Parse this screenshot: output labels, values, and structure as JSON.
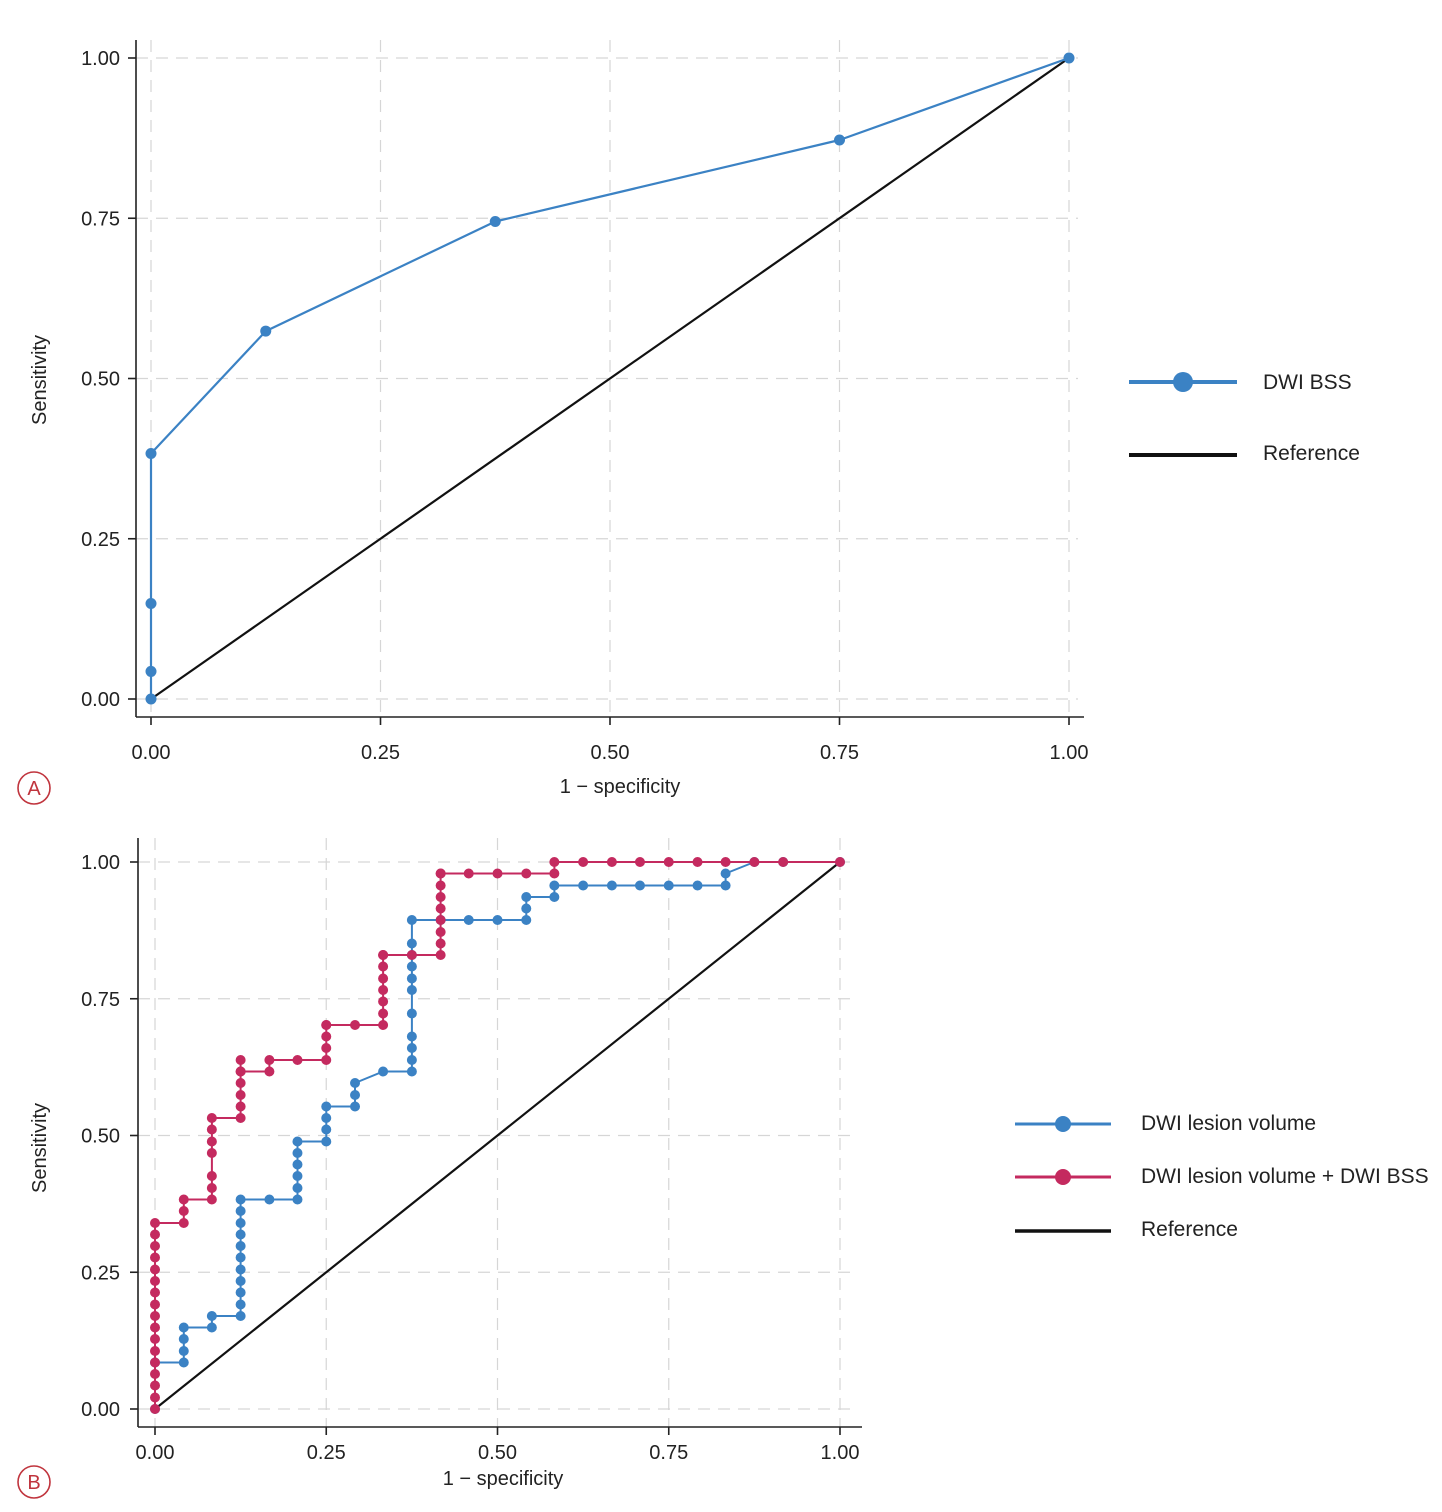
{
  "colors": {
    "blue": "#3b82c4",
    "crimson": "#c42a5f",
    "reference": "#111111",
    "panel_letter": "#c0343d"
  },
  "chart_data": [
    {
      "panel": "A",
      "type": "line",
      "title": "",
      "xlabel": "1 − specificity",
      "ylabel": "Sensitivity",
      "xlim": [
        0,
        1
      ],
      "ylim": [
        0,
        1
      ],
      "x_ticks": [
        "0.00",
        "0.25",
        "0.50",
        "0.75",
        "1.00"
      ],
      "y_ticks": [
        "0.00",
        "0.25",
        "0.50",
        "0.75",
        "1.00"
      ],
      "grid": true,
      "legend_position": "right",
      "series": [
        {
          "name": "DWI BSS",
          "color": "#3b82c4",
          "x": [
            0,
            0,
            0,
            0,
            0.125,
            0.375,
            0.75,
            1.0
          ],
          "y": [
            0,
            0.043,
            0.149,
            0.383,
            0.574,
            0.745,
            0.872,
            1.0
          ]
        },
        {
          "name": "Reference",
          "color": "#111111",
          "x": [
            0,
            1
          ],
          "y": [
            0,
            1
          ],
          "reference": true
        }
      ]
    },
    {
      "panel": "B",
      "type": "line",
      "title": "",
      "xlabel": "1 − specificity",
      "ylabel": "Sensitivity",
      "xlim": [
        0,
        1
      ],
      "ylim": [
        0,
        1
      ],
      "x_ticks": [
        "0.00",
        "0.25",
        "0.50",
        "0.75",
        "1.00"
      ],
      "y_ticks": [
        "0.00",
        "0.25",
        "0.50",
        "0.75",
        "1.00"
      ],
      "grid": true,
      "legend_position": "right",
      "series": [
        {
          "name": "DWI lesion volume",
          "color": "#3b82c4",
          "x": [
            0,
            0,
            0.042,
            0.042,
            0.042,
            0.042,
            0.083,
            0.083,
            0.125,
            0.125,
            0.125,
            0.125,
            0.125,
            0.125,
            0.125,
            0.125,
            0.125,
            0.125,
            0.125,
            0.167,
            0.208,
            0.208,
            0.208,
            0.208,
            0.208,
            0.208,
            0.25,
            0.25,
            0.25,
            0.25,
            0.292,
            0.292,
            0.292,
            0.333,
            0.375,
            0.375,
            0.375,
            0.375,
            0.375,
            0.375,
            0.375,
            0.375,
            0.375,
            0.375,
            0.375,
            0.417,
            0.458,
            0.5,
            0.542,
            0.542,
            0.542,
            0.583,
            0.583,
            0.625,
            0.667,
            0.708,
            0.75,
            0.792,
            0.833,
            0.833,
            0.875,
            0.917,
            1.0
          ],
          "y": [
            0,
            0.085,
            0.085,
            0.106,
            0.128,
            0.149,
            0.149,
            0.17,
            0.17,
            0.191,
            0.213,
            0.234,
            0.255,
            0.277,
            0.298,
            0.319,
            0.34,
            0.362,
            0.383,
            0.383,
            0.383,
            0.404,
            0.426,
            0.447,
            0.468,
            0.489,
            0.489,
            0.511,
            0.532,
            0.553,
            0.553,
            0.574,
            0.596,
            0.617,
            0.617,
            0.638,
            0.66,
            0.681,
            0.723,
            0.766,
            0.787,
            0.809,
            0.83,
            0.851,
            0.894,
            0.894,
            0.894,
            0.894,
            0.894,
            0.915,
            0.936,
            0.936,
            0.957,
            0.957,
            0.957,
            0.957,
            0.957,
            0.957,
            0.957,
            0.979,
            1.0,
            1.0,
            1.0
          ]
        },
        {
          "name": "DWI lesion volume + DWI BSS",
          "color": "#c42a5f",
          "x": [
            0,
            0,
            0,
            0,
            0,
            0,
            0,
            0,
            0,
            0,
            0,
            0,
            0,
            0,
            0,
            0,
            0,
            0.042,
            0.042,
            0.042,
            0.083,
            0.083,
            0.083,
            0.083,
            0.083,
            0.083,
            0.083,
            0.125,
            0.125,
            0.125,
            0.125,
            0.125,
            0.125,
            0.125,
            0.167,
            0.167,
            0.208,
            0.25,
            0.25,
            0.25,
            0.25,
            0.25,
            0.292,
            0.333,
            0.333,
            0.333,
            0.333,
            0.333,
            0.333,
            0.333,
            0.333,
            0.375,
            0.417,
            0.417,
            0.417,
            0.417,
            0.417,
            0.417,
            0.417,
            0.417,
            0.417,
            0.458,
            0.5,
            0.542,
            0.583,
            0.583,
            0.625,
            0.667,
            0.708,
            0.75,
            0.792,
            0.833,
            0.875,
            0.917,
            1.0
          ],
          "y": [
            0,
            0.021,
            0.043,
            0.064,
            0.085,
            0.106,
            0.128,
            0.149,
            0.17,
            0.191,
            0.213,
            0.234,
            0.255,
            0.277,
            0.298,
            0.319,
            0.34,
            0.34,
            0.362,
            0.383,
            0.383,
            0.404,
            0.426,
            0.468,
            0.489,
            0.511,
            0.532,
            0.532,
            0.553,
            0.574,
            0.596,
            0.617,
            0.638,
            0.617,
            0.617,
            0.638,
            0.638,
            0.638,
            0.66,
            0.681,
            0.702,
            0.702,
            0.702,
            0.702,
            0.723,
            0.745,
            0.766,
            0.787,
            0.809,
            0.83,
            0.83,
            0.83,
            0.83,
            0.851,
            0.872,
            0.894,
            0.915,
            0.936,
            0.957,
            0.979,
            0.979,
            0.979,
            0.979,
            0.979,
            0.979,
            1.0,
            1.0,
            1.0,
            1.0,
            1.0,
            1.0,
            1.0,
            1.0,
            1.0,
            1.0
          ],
          "smooth_note": ""
        },
        {
          "name": "Reference",
          "color": "#111111",
          "x": [
            0,
            1
          ],
          "y": [
            0,
            1
          ],
          "reference": true
        }
      ]
    }
  ],
  "panels": {
    "A": {
      "letter": "A"
    },
    "B": {
      "letter": "B"
    }
  }
}
